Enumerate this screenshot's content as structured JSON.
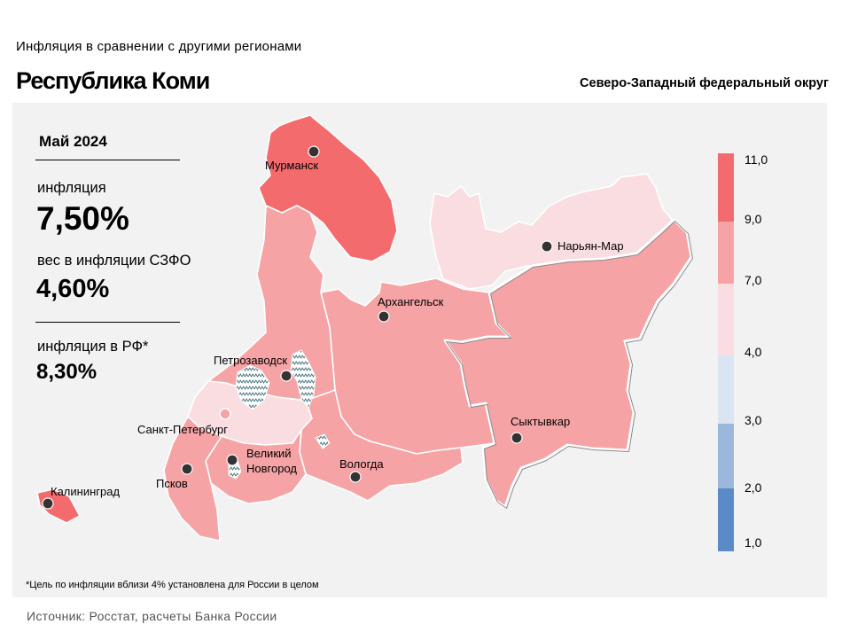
{
  "header": {
    "supertitle": "Инфляция в сравнении с другими регионами",
    "title": "Республика Коми",
    "district": "Северо-Западный федеральный округ"
  },
  "stats": {
    "period": "Май 2024",
    "inflation_label": "инфляция",
    "inflation_value": "7,50%",
    "weight_label": "вес в инфляции СЗФО",
    "weight_value": "4,60%",
    "rf_label": "инфляция в РФ*",
    "rf_value": "8,30%"
  },
  "cities": [
    {
      "name": "Мурманск"
    },
    {
      "name": "Нарьян-Мар"
    },
    {
      "name": "Архангельск"
    },
    {
      "name": "Петрозаводск"
    },
    {
      "name": "Сыктывкар"
    },
    {
      "name": "Санкт-Петербург"
    },
    {
      "name": "Великий"
    },
    {
      "name": "Новгород"
    },
    {
      "name": "Вологда"
    },
    {
      "name": "Псков"
    },
    {
      "name": "Калининград"
    }
  ],
  "legend": {
    "labels": [
      "11,0",
      "9,0",
      "7,0",
      "4,0",
      "3,0",
      "2,0",
      "1,0"
    ],
    "colors": [
      "#f46b6e",
      "#f6a3a5",
      "#f9dde0",
      "#dae4f2",
      "#9bb8dc",
      "#5b8bc6"
    ]
  },
  "colors": {
    "bin_9_11": "#f46b6e",
    "bin_7_9": "#f6a3a5",
    "bin_4_7": "#f9dde0",
    "panel": "#f2f2f2"
  },
  "footnote": "*Цель по инфляции вблизи 4% установлена для России в целом",
  "source": "Источник: Росстат, расчеты Банка России"
}
